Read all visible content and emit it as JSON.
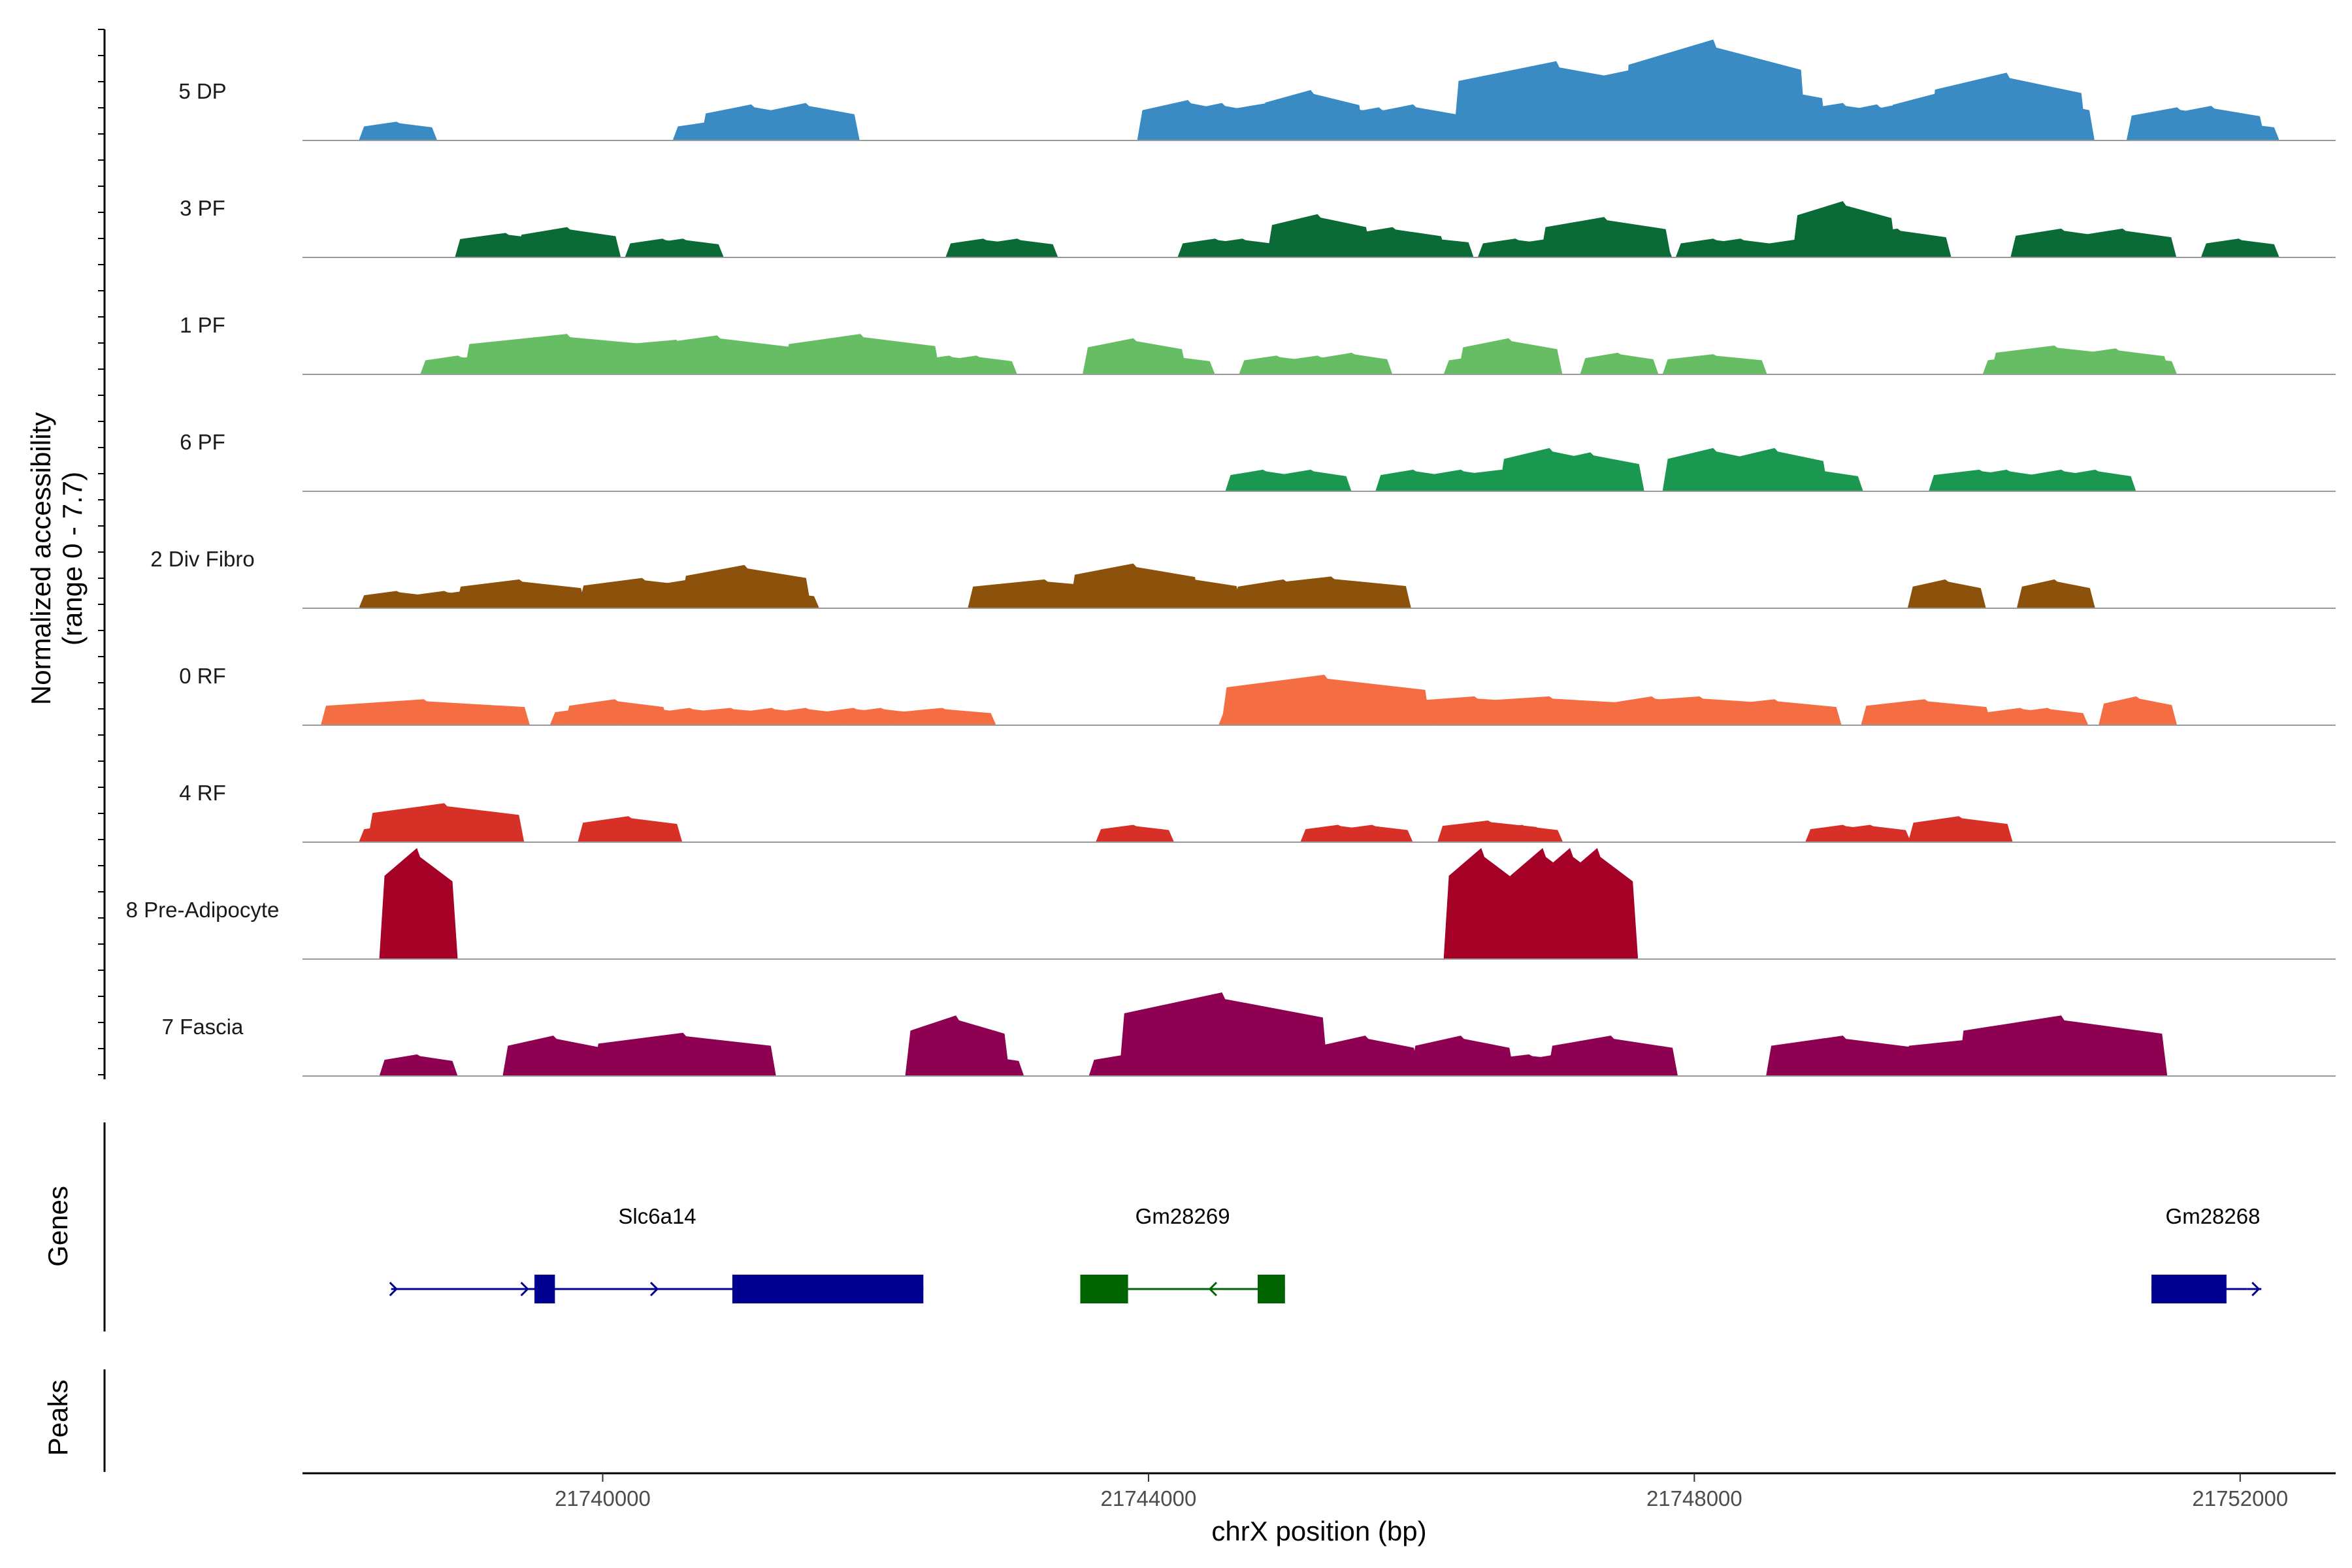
{
  "chart_data": {
    "type": "area",
    "title": "",
    "ylabel_line1": "Normalized accessibility",
    "ylabel_line2": "(range 0 - 7.7)",
    "y_range": [
      0,
      7.7
    ],
    "xlabel": "chrX position (bp)",
    "xlim": [
      21737800,
      21752700
    ],
    "x_ticks": [
      21740000,
      21744000,
      21748000,
      21752000
    ],
    "x_tick_labels": [
      "21740000",
      "21744000",
      "21748000",
      "21752000"
    ],
    "genes_label": "Genes",
    "peaks_label": "Peaks",
    "tracks": [
      {
        "name": "5 DP",
        "color": "#3a8ac4",
        "peaks": [
          [
            21738500,
            3,
            1.3
          ],
          [
            21740800,
            3,
            1.3
          ],
          [
            21740950,
            3,
            1.3
          ],
          [
            21741100,
            4,
            2.5
          ],
          [
            21741500,
            4,
            2.6
          ],
          [
            21744300,
            4,
            2.8
          ],
          [
            21744550,
            4,
            2.6
          ],
          [
            21744950,
            5,
            2.7
          ],
          [
            21745200,
            4,
            3.5
          ],
          [
            21745400,
            5,
            2.5
          ],
          [
            21745700,
            4,
            2.3
          ],
          [
            21745950,
            4,
            2.5
          ],
          [
            21746350,
            3,
            1.3
          ],
          [
            21746600,
            3,
            1.3
          ],
          [
            21746800,
            4,
            1.3
          ],
          [
            21747000,
            8,
            5.5
          ],
          [
            21747250,
            7,
            4.4
          ],
          [
            21747500,
            4,
            2.5
          ],
          [
            21747700,
            4,
            1.4
          ],
          [
            21747950,
            8,
            5.7
          ],
          [
            21748150,
            7,
            7.0
          ],
          [
            21748400,
            6,
            4.2
          ],
          [
            21748600,
            6,
            2.6
          ],
          [
            21749100,
            5,
            2.6
          ],
          [
            21749350,
            4,
            2.5
          ],
          [
            21749550,
            4,
            2.6
          ],
          [
            21749800,
            4,
            3.3
          ],
          [
            21750050,
            5,
            3.5
          ],
          [
            21750300,
            6,
            4.7
          ],
          [
            21750550,
            4,
            3.0
          ],
          [
            21751550,
            4,
            2.3
          ],
          [
            21751800,
            4,
            2.4
          ],
          [
            21752000,
            3,
            1.3
          ]
        ]
      },
      {
        "name": "3 PF",
        "color": "#0a6b36",
        "peaks": [
          [
            21739300,
            4,
            1.7
          ],
          [
            21739750,
            4,
            2.1
          ],
          [
            21740450,
            3,
            1.3
          ],
          [
            21740600,
            3,
            1.3
          ],
          [
            21742800,
            3,
            1.3
          ],
          [
            21743050,
            3,
            1.3
          ],
          [
            21744500,
            3,
            1.3
          ],
          [
            21744700,
            3,
            1.3
          ],
          [
            21745250,
            4,
            3.0
          ],
          [
            21745800,
            4,
            2.1
          ],
          [
            21746000,
            4,
            1.5
          ],
          [
            21746700,
            3,
            1.3
          ],
          [
            21746950,
            3,
            1.3
          ],
          [
            21747100,
            3,
            1.3
          ],
          [
            21747350,
            5,
            2.8
          ],
          [
            21747550,
            3,
            1.3
          ],
          [
            21748150,
            3,
            1.3
          ],
          [
            21748350,
            3,
            1.3
          ],
          [
            21748800,
            3,
            1.3
          ],
          [
            21749100,
            4,
            3.9
          ],
          [
            21749500,
            4,
            2.0
          ],
          [
            21750700,
            4,
            2.0
          ],
          [
            21751150,
            4,
            2.0
          ],
          [
            21752000,
            3,
            1.3
          ]
        ]
      },
      {
        "name": "1 PF",
        "color": "#66bd63",
        "peaks": [
          [
            21738950,
            3,
            1.3
          ],
          [
            21739100,
            3,
            1.3
          ],
          [
            21739750,
            8,
            2.8
          ],
          [
            21740000,
            5,
            1.8
          ],
          [
            21740550,
            8,
            2.4
          ],
          [
            21740850,
            6,
            2.7
          ],
          [
            21741050,
            3,
            2.3
          ],
          [
            21741300,
            3,
            1.3
          ],
          [
            21741600,
            3,
            1.3
          ],
          [
            21741900,
            6,
            2.8
          ],
          [
            21742200,
            3,
            1.3
          ],
          [
            21742550,
            3,
            1.3
          ],
          [
            21742750,
            3,
            1.3
          ],
          [
            21743900,
            4,
            2.5
          ],
          [
            21744200,
            3,
            1.3
          ],
          [
            21744950,
            3,
            1.3
          ],
          [
            21745250,
            3,
            1.3
          ],
          [
            21745500,
            3,
            1.5
          ],
          [
            21746450,
            3,
            1.3
          ],
          [
            21746650,
            4,
            2.5
          ],
          [
            21747450,
            3,
            1.5
          ],
          [
            21748150,
            4,
            1.4
          ],
          [
            21750400,
            3,
            1.3
          ],
          [
            21750650,
            5,
            2.0
          ],
          [
            21751100,
            4,
            1.8
          ],
          [
            21751250,
            3,
            1.3
          ]
        ]
      },
      {
        "name": "6 PF",
        "color": "#1a9850",
        "peaks": [
          [
            21744850,
            3,
            1.5
          ],
          [
            21745200,
            3,
            1.5
          ],
          [
            21745950,
            3,
            1.5
          ],
          [
            21746300,
            3,
            1.5
          ],
          [
            21746600,
            4,
            1.5
          ],
          [
            21746950,
            4,
            3.0
          ],
          [
            21747250,
            4,
            2.7
          ],
          [
            21748150,
            4,
            3.0
          ],
          [
            21748400,
            3,
            1.5
          ],
          [
            21748600,
            4,
            3.0
          ],
          [
            21748950,
            3,
            1.5
          ],
          [
            21750100,
            4,
            1.5
          ],
          [
            21750300,
            3,
            1.5
          ],
          [
            21750700,
            3,
            1.5
          ],
          [
            21750950,
            3,
            1.5
          ]
        ]
      },
      {
        "name": "2 Div Fibro",
        "color": "#8c510a",
        "peaks": [
          [
            21738500,
            3,
            1.2
          ],
          [
            21738850,
            3,
            1.2
          ],
          [
            21739000,
            3,
            1.2
          ],
          [
            21739400,
            5,
            2.0
          ],
          [
            21739650,
            3,
            1.2
          ],
          [
            21740300,
            5,
            2.1
          ],
          [
            21740650,
            4,
            2.0
          ],
          [
            21740850,
            3,
            1.2
          ],
          [
            21741050,
            5,
            3.0
          ],
          [
            21741300,
            3,
            1.2
          ],
          [
            21743250,
            6,
            2.0
          ],
          [
            21743700,
            3,
            1.2
          ],
          [
            21743900,
            5,
            3.1
          ],
          [
            21744300,
            4,
            2.2
          ],
          [
            21745000,
            4,
            2.0
          ],
          [
            21745350,
            6,
            2.2
          ],
          [
            21749850,
            3,
            2.0
          ],
          [
            21750650,
            3,
            2.0
          ]
        ]
      },
      {
        "name": "0 RF",
        "color": "#f46d43",
        "peaks": [
          [
            21738700,
            8,
            1.8
          ],
          [
            21739900,
            3,
            1.2
          ],
          [
            21740100,
            4,
            1.8
          ],
          [
            21740400,
            3,
            1.2
          ],
          [
            21740650,
            3,
            1.2
          ],
          [
            21740950,
            4,
            1.2
          ],
          [
            21741250,
            3,
            1.2
          ],
          [
            21741500,
            3,
            1.2
          ],
          [
            21741850,
            3,
            1.2
          ],
          [
            21742050,
            3,
            1.2
          ],
          [
            21742500,
            4,
            1.2
          ],
          [
            21744800,
            3,
            1.2
          ],
          [
            21745300,
            8,
            3.5
          ],
          [
            21745900,
            8,
            2.0
          ],
          [
            21746400,
            8,
            2.0
          ],
          [
            21746950,
            9,
            2.0
          ],
          [
            21747450,
            3,
            1.2
          ],
          [
            21747700,
            4,
            2.0
          ],
          [
            21748050,
            8,
            2.0
          ],
          [
            21748600,
            5,
            1.8
          ],
          [
            21749700,
            5,
            1.8
          ],
          [
            21750400,
            3,
            1.2
          ],
          [
            21750600,
            3,
            1.2
          ],
          [
            21751250,
            3,
            2.0
          ]
        ]
      },
      {
        "name": "4 RF",
        "color": "#d73027",
        "peaks": [
          [
            21738500,
            3,
            1.2
          ],
          [
            21738850,
            6,
            2.7
          ],
          [
            21740200,
            4,
            1.8
          ],
          [
            21743900,
            3,
            1.2
          ],
          [
            21745400,
            3,
            1.2
          ],
          [
            21745650,
            3,
            1.2
          ],
          [
            21746500,
            4,
            1.5
          ],
          [
            21746750,
            3,
            1.2
          ],
          [
            21749100,
            3,
            1.2
          ],
          [
            21749300,
            3,
            1.2
          ],
          [
            21749950,
            4,
            1.8
          ]
        ]
      },
      {
        "name": "8 Pre-Adipocyte",
        "color": "#a50026",
        "peaks": [
          [
            21738650,
            3,
            7.7
          ],
          [
            21746450,
            3,
            7.7
          ],
          [
            21746900,
            3,
            7.7
          ],
          [
            21747100,
            3,
            7.7
          ],
          [
            21747300,
            3,
            7.7
          ]
        ]
      },
      {
        "name": "7 Fascia",
        "color": "#8e0152",
        "peaks": [
          [
            21738650,
            3,
            1.5
          ],
          [
            21739650,
            4,
            2.8
          ],
          [
            21740600,
            7,
            3.0
          ],
          [
            21742600,
            4,
            4.2
          ],
          [
            21742800,
            3,
            1.5
          ],
          [
            21743850,
            3,
            1.5
          ],
          [
            21744150,
            3,
            1.5
          ],
          [
            21744550,
            8,
            5.8
          ],
          [
            21745050,
            3,
            1.5
          ],
          [
            21745300,
            3,
            1.5
          ],
          [
            21745600,
            4,
            2.8
          ],
          [
            21746300,
            4,
            2.8
          ],
          [
            21746800,
            4,
            1.5
          ],
          [
            21747000,
            3,
            1.5
          ],
          [
            21747200,
            3,
            1.5
          ],
          [
            21747400,
            5,
            2.8
          ],
          [
            21749100,
            6,
            2.8
          ],
          [
            21749600,
            3,
            1.5
          ],
          [
            21750300,
            8,
            2.8
          ],
          [
            21750700,
            8,
            4.2
          ],
          [
            21751150,
            3,
            1.5
          ]
        ]
      }
    ],
    "genes": [
      {
        "name": "Slc6a14",
        "strand": "+",
        "color": "#000090",
        "start": 21738450,
        "end": 21742350,
        "exons": [
          [
            21739500,
            21739650
          ],
          [
            21740950,
            21742350
          ]
        ],
        "label_at": 21740400
      },
      {
        "name": "Gm28269",
        "strand": "-",
        "color": "#006400",
        "start": 21743500,
        "end": 21745000,
        "exons": [
          [
            21743500,
            21743850
          ],
          [
            21744800,
            21745000
          ]
        ],
        "label_at": 21744250
      },
      {
        "name": "Gm28268",
        "strand": "+",
        "color": "#000090",
        "start": 21751350,
        "end": 21752050,
        "exons": [
          [
            21751350,
            21751900
          ]
        ],
        "label_at": 21751800
      }
    ]
  }
}
